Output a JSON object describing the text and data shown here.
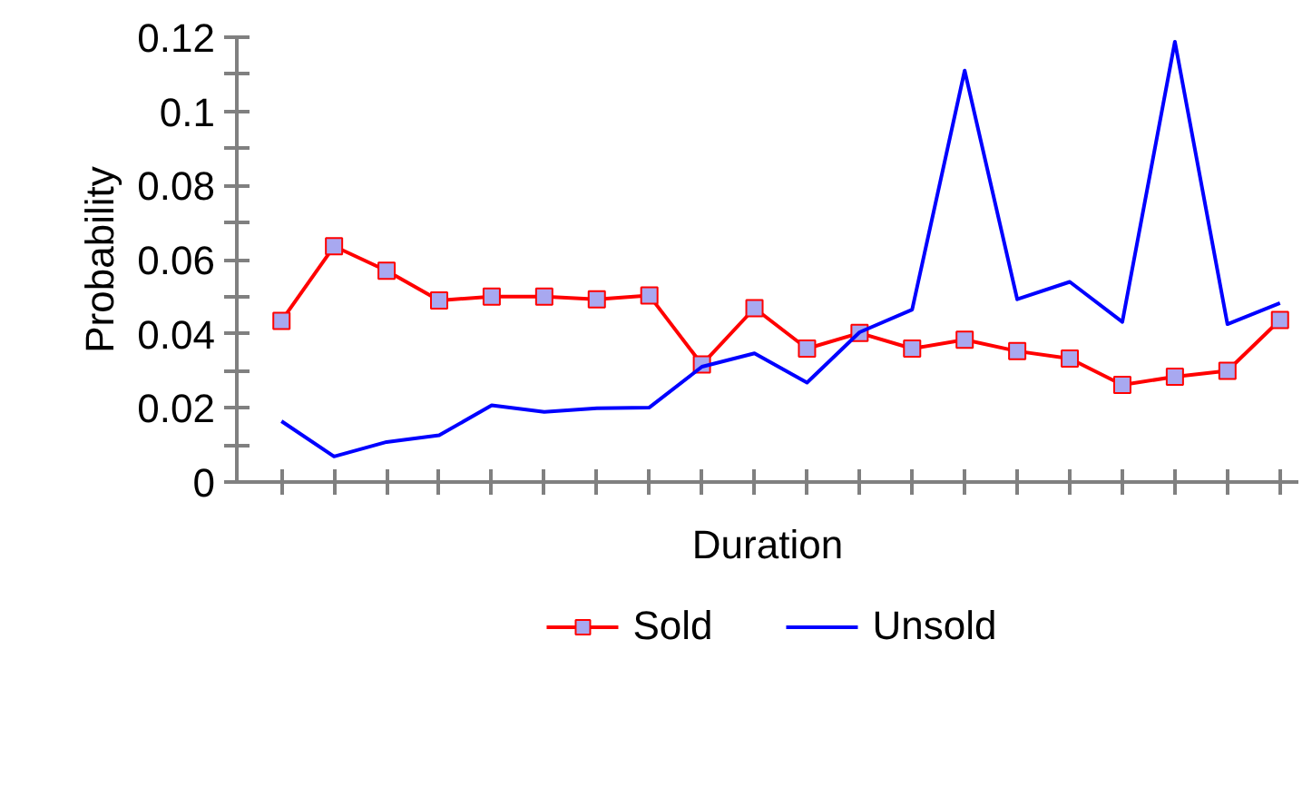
{
  "chart_data": {
    "type": "line",
    "xlabel": "Duration",
    "ylabel": "Probability",
    "categories": [
      null,
      null,
      null,
      null,
      null,
      null,
      null,
      null,
      null,
      null,
      null,
      null,
      null,
      null,
      null,
      null,
      null,
      null,
      null,
      null
    ],
    "series": [
      {
        "name": "Sold",
        "color": "#ff0000",
        "marker": "square",
        "values": [
          0.0435,
          0.0636,
          0.057,
          0.049,
          0.05,
          0.05,
          0.0493,
          0.0503,
          0.0317,
          0.0469,
          0.036,
          0.0402,
          0.036,
          0.0384,
          0.0353,
          0.0333,
          0.0262,
          0.0284,
          0.03,
          0.0437
        ]
      },
      {
        "name": "Unsold",
        "color": "#0000ff",
        "marker": "none",
        "values": [
          0.0164,
          0.0069,
          0.0108,
          0.0126,
          0.0207,
          0.0189,
          0.0199,
          0.0201,
          0.0311,
          0.0347,
          0.0268,
          0.0404,
          0.0465,
          0.111,
          0.0493,
          0.054,
          0.0432,
          0.1188,
          0.0426,
          0.0483
        ]
      }
    ],
    "ylim": [
      0,
      0.12
    ],
    "yticks": [
      0,
      {
        "value": 0.01,
        "label": null
      },
      0.02,
      {
        "value": 0.03,
        "label": null
      },
      0.04,
      {
        "value": 0.05,
        "label": null
      },
      0.06,
      {
        "value": 0.07,
        "label": null
      },
      0.08,
      {
        "value": 0.09,
        "label": null
      },
      0.1,
      {
        "value": 0.11,
        "label": null
      },
      0.12
    ],
    "grid": false,
    "legend": "bottom"
  }
}
